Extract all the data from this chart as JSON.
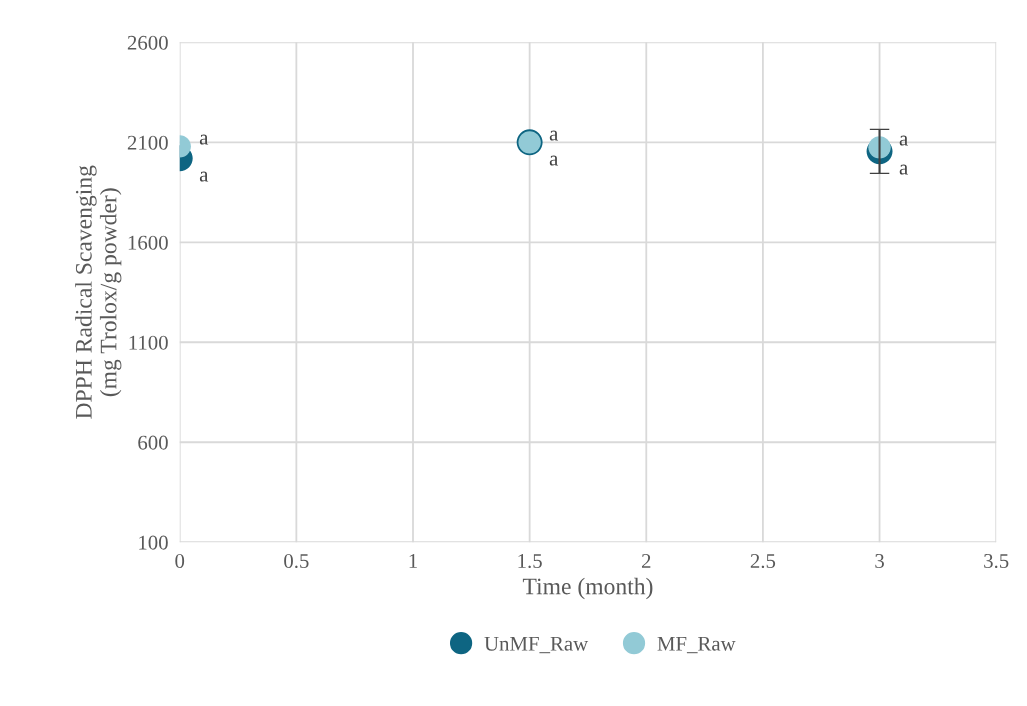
{
  "chart_data": {
    "type": "scatter",
    "xlabel": "Time (month)",
    "ylabel": "DPPH Radical Scavenging\n(mg Trolox/g powder)",
    "x": [
      0,
      1.5,
      3
    ],
    "series": [
      {
        "name": "UnMF_Raw",
        "color": "#0e6582",
        "values": [
          2020,
          2100,
          2055
        ],
        "errors": [
          null,
          null,
          110
        ]
      },
      {
        "name": "MF_Raw",
        "color": "#92cad6",
        "values": [
          2080,
          2100,
          2075
        ]
      }
    ],
    "annotations": [
      {
        "text": "a",
        "x": 0,
        "y": 2020
      },
      {
        "text": "a",
        "x": 1.5,
        "y": 2100
      },
      {
        "text": "a",
        "x": 3,
        "y": 2055
      },
      {
        "text": "a",
        "x": 0,
        "y": 2080
      },
      {
        "text": "a",
        "x": 1.5,
        "y": 2100
      },
      {
        "text": "a",
        "x": 3,
        "y": 2075
      }
    ],
    "xlim": [
      0,
      3.5
    ],
    "xticks": [
      0,
      0.5,
      1,
      1.5,
      2,
      2.5,
      3,
      3.5
    ],
    "ylim": [
      100,
      2600
    ],
    "yticks": [
      100,
      600,
      1100,
      1600,
      2100,
      2600
    ],
    "grid": true,
    "legend": "bottom",
    "marker": "circle"
  }
}
